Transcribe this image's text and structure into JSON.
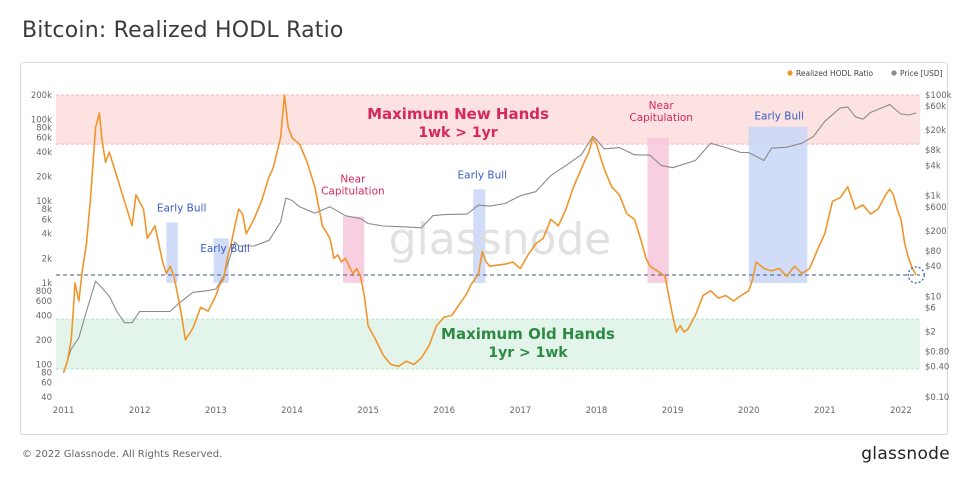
{
  "page": {
    "title": "Bitcoin: Realized HODL Ratio",
    "copyright": "© 2022 Glassnode. All Rights Reserved.",
    "brand": "glassnode",
    "watermark": "glassnode"
  },
  "colors": {
    "ratio": "#f0952b",
    "price": "#8a8a8a",
    "new_hands_zone": "#fde2e2",
    "old_hands_zone": "#e3f5ea",
    "near_cap_band": "#f7c6dc",
    "early_bull_band": "#c9d6f7",
    "new_hands_text": "#d6285f",
    "old_hands_text": "#2c8a43",
    "near_cap_text": "#d6285f",
    "early_bull_text": "#3a5ec4",
    "threshold_line": "#3d5a80"
  },
  "chart_data": {
    "type": "line",
    "x_axis": {
      "ticks": [
        "2011",
        "2012",
        "2013",
        "2014",
        "2015",
        "2016",
        "2017",
        "2018",
        "2019",
        "2020",
        "2021",
        "2022"
      ],
      "range": [
        2010.9,
        2022.25
      ]
    },
    "y_left": {
      "scale": "log",
      "range": [
        40,
        200000
      ],
      "ticks": [
        {
          "v": 200000,
          "l": "200k"
        },
        {
          "v": 100000,
          "l": "100k"
        },
        {
          "v": 80000,
          "l": "80k"
        },
        {
          "v": 60000,
          "l": "60k"
        },
        {
          "v": 40000,
          "l": "40k"
        },
        {
          "v": 20000,
          "l": "20k"
        },
        {
          "v": 10000,
          "l": "10k"
        },
        {
          "v": 8000,
          "l": "8k"
        },
        {
          "v": 6000,
          "l": "6k"
        },
        {
          "v": 4000,
          "l": "4k"
        },
        {
          "v": 2000,
          "l": "2k"
        },
        {
          "v": 1000,
          "l": "1k"
        },
        {
          "v": 800,
          "l": "800"
        },
        {
          "v": 600,
          "l": "600"
        },
        {
          "v": 400,
          "l": "400"
        },
        {
          "v": 200,
          "l": "200"
        },
        {
          "v": 100,
          "l": "100"
        },
        {
          "v": 80,
          "l": "80"
        },
        {
          "v": 60,
          "l": "60"
        },
        {
          "v": 40,
          "l": "40"
        }
      ]
    },
    "y_right": {
      "scale": "log",
      "range": [
        0.1,
        100000
      ],
      "ticks": [
        {
          "v": 100000,
          "l": "$100k"
        },
        {
          "v": 60000,
          "l": "$60k"
        },
        {
          "v": 20000,
          "l": "$20k"
        },
        {
          "v": 8000,
          "l": "$8k"
        },
        {
          "v": 4000,
          "l": "$4k"
        },
        {
          "v": 1000,
          "l": "$1k"
        },
        {
          "v": 600,
          "l": "$600"
        },
        {
          "v": 200,
          "l": "$200"
        },
        {
          "v": 80,
          "l": "$80"
        },
        {
          "v": 40,
          "l": "$40"
        },
        {
          "v": 10,
          "l": "$10"
        },
        {
          "v": 6,
          "l": "$6"
        },
        {
          "v": 2,
          "l": "$2"
        },
        {
          "v": 0.8,
          "l": "$0.80"
        },
        {
          "v": 0.4,
          "l": "$0.40"
        },
        {
          "v": 0.1,
          "l": "$0.10"
        }
      ]
    },
    "legend": {
      "placement": "top-right",
      "items": [
        {
          "name": "Realized HODL Ratio",
          "color": "#f0952b"
        },
        {
          "name": "Price [USD]",
          "color": "#8a8a8a"
        }
      ]
    },
    "zones": [
      {
        "name": "Maximum New Hands",
        "label_line1": "Maximum New Hands",
        "label_line2": "1wk > 1yr",
        "y_from": 50000,
        "y_to": 200000
      },
      {
        "name": "Maximum Old Hands",
        "label_line1": "Maximum Old Hands",
        "label_line2": "1yr > 1wk",
        "y_from": 88,
        "y_to": 360
      }
    ],
    "threshold": 1250,
    "bands": [
      {
        "label": "Early Bull",
        "type": "early_bull",
        "x_from": 2012.35,
        "x_to": 2012.5,
        "y_from": 1000,
        "y_to": 5500,
        "label_x": 2012.55,
        "label_y": 7500
      },
      {
        "label": "Early Bull",
        "type": "early_bull",
        "x_from": 2012.97,
        "x_to": 2013.17,
        "y_from": 1000,
        "y_to": 3500,
        "label_x": 2013.12,
        "label_y": 2400
      },
      {
        "label_line1": "Near",
        "label_line2": "Capitulation",
        "type": "near_cap",
        "x_from": 2014.67,
        "x_to": 2014.95,
        "y_from": 1000,
        "y_to": 6500,
        "label_x": 2014.8,
        "label_y": 17000
      },
      {
        "label": "Early Bull",
        "type": "early_bull",
        "x_from": 2016.38,
        "x_to": 2016.54,
        "y_from": 1000,
        "y_to": 14000,
        "label_x": 2016.5,
        "label_y": 19000
      },
      {
        "label_line1": "Near",
        "label_line2": "Capitulation",
        "type": "near_cap",
        "x_from": 2018.67,
        "x_to": 2018.95,
        "y_from": 1000,
        "y_to": 60000,
        "label_x": 2018.85,
        "label_y": 135000
      },
      {
        "label": "Early Bull",
        "type": "early_bull",
        "x_from": 2020.0,
        "x_to": 2020.77,
        "y_from": 1000,
        "y_to": 82000,
        "label_x": 2020.4,
        "label_y": 100000
      }
    ],
    "series": [
      {
        "name": "Realized HODL Ratio",
        "axis": "left",
        "points": [
          [
            2011.0,
            80
          ],
          [
            2011.05,
            110
          ],
          [
            2011.1,
            200
          ],
          [
            2011.13,
            500
          ],
          [
            2011.15,
            1000
          ],
          [
            2011.2,
            600
          ],
          [
            2011.25,
            1500
          ],
          [
            2011.3,
            3000
          ],
          [
            2011.35,
            10000
          ],
          [
            2011.42,
            80000
          ],
          [
            2011.47,
            120000
          ],
          [
            2011.5,
            60000
          ],
          [
            2011.55,
            30000
          ],
          [
            2011.6,
            40000
          ],
          [
            2011.7,
            20000
          ],
          [
            2011.8,
            10000
          ],
          [
            2011.9,
            5000
          ],
          [
            2011.95,
            12000
          ],
          [
            2012.05,
            8000
          ],
          [
            2012.1,
            3500
          ],
          [
            2012.2,
            5000
          ],
          [
            2012.3,
            1800
          ],
          [
            2012.35,
            1300
          ],
          [
            2012.4,
            1600
          ],
          [
            2012.45,
            1200
          ],
          [
            2012.5,
            700
          ],
          [
            2012.55,
            400
          ],
          [
            2012.6,
            200
          ],
          [
            2012.7,
            280
          ],
          [
            2012.8,
            500
          ],
          [
            2012.9,
            450
          ],
          [
            2013.0,
            700
          ],
          [
            2013.05,
            950
          ],
          [
            2013.1,
            1100
          ],
          [
            2013.15,
            2000
          ],
          [
            2013.2,
            3000
          ],
          [
            2013.25,
            5000
          ],
          [
            2013.3,
            8000
          ],
          [
            2013.35,
            7000
          ],
          [
            2013.4,
            4000
          ],
          [
            2013.5,
            6000
          ],
          [
            2013.6,
            10000
          ],
          [
            2013.7,
            20000
          ],
          [
            2013.75,
            25000
          ],
          [
            2013.85,
            60000
          ],
          [
            2013.9,
            200000
          ],
          [
            2013.95,
            80000
          ],
          [
            2014.0,
            60000
          ],
          [
            2014.1,
            50000
          ],
          [
            2014.2,
            30000
          ],
          [
            2014.3,
            15000
          ],
          [
            2014.4,
            5000
          ],
          [
            2014.5,
            3500
          ],
          [
            2014.55,
            2000
          ],
          [
            2014.6,
            2200
          ],
          [
            2014.65,
            1800
          ],
          [
            2014.7,
            2000
          ],
          [
            2014.75,
            1600
          ],
          [
            2014.8,
            1300
          ],
          [
            2014.85,
            1500
          ],
          [
            2014.9,
            1200
          ],
          [
            2014.95,
            700
          ],
          [
            2015.0,
            300
          ],
          [
            2015.1,
            200
          ],
          [
            2015.2,
            130
          ],
          [
            2015.3,
            100
          ],
          [
            2015.4,
            95
          ],
          [
            2015.5,
            110
          ],
          [
            2015.6,
            100
          ],
          [
            2015.7,
            120
          ],
          [
            2015.8,
            170
          ],
          [
            2015.9,
            300
          ],
          [
            2016.0,
            380
          ],
          [
            2016.1,
            400
          ],
          [
            2016.2,
            550
          ],
          [
            2016.3,
            750
          ],
          [
            2016.35,
            950
          ],
          [
            2016.4,
            1100
          ],
          [
            2016.45,
            1300
          ],
          [
            2016.5,
            2400
          ],
          [
            2016.55,
            1800
          ],
          [
            2016.6,
            1600
          ],
          [
            2016.8,
            1700
          ],
          [
            2016.9,
            1800
          ],
          [
            2017.0,
            1500
          ],
          [
            2017.1,
            2200
          ],
          [
            2017.2,
            3000
          ],
          [
            2017.3,
            3500
          ],
          [
            2017.4,
            6000
          ],
          [
            2017.5,
            5000
          ],
          [
            2017.6,
            8000
          ],
          [
            2017.7,
            15000
          ],
          [
            2017.8,
            25000
          ],
          [
            2017.9,
            40000
          ],
          [
            2017.95,
            60000
          ],
          [
            2018.0,
            50000
          ],
          [
            2018.1,
            25000
          ],
          [
            2018.2,
            15000
          ],
          [
            2018.3,
            12000
          ],
          [
            2018.4,
            7000
          ],
          [
            2018.5,
            6000
          ],
          [
            2018.6,
            3000
          ],
          [
            2018.65,
            2000
          ],
          [
            2018.7,
            1600
          ],
          [
            2018.8,
            1400
          ],
          [
            2018.9,
            1200
          ],
          [
            2019.0,
            400
          ],
          [
            2019.05,
            250
          ],
          [
            2019.1,
            300
          ],
          [
            2019.15,
            250
          ],
          [
            2019.2,
            270
          ],
          [
            2019.3,
            400
          ],
          [
            2019.4,
            700
          ],
          [
            2019.5,
            800
          ],
          [
            2019.6,
            650
          ],
          [
            2019.7,
            700
          ],
          [
            2019.8,
            600
          ],
          [
            2019.9,
            700
          ],
          [
            2020.0,
            800
          ],
          [
            2020.05,
            1100
          ],
          [
            2020.1,
            1800
          ],
          [
            2020.2,
            1500
          ],
          [
            2020.3,
            1400
          ],
          [
            2020.4,
            1500
          ],
          [
            2020.5,
            1200
          ],
          [
            2020.6,
            1600
          ],
          [
            2020.7,
            1300
          ],
          [
            2020.8,
            1500
          ],
          [
            2020.9,
            2500
          ],
          [
            2021.0,
            4000
          ],
          [
            2021.1,
            10000
          ],
          [
            2021.2,
            11000
          ],
          [
            2021.3,
            15000
          ],
          [
            2021.4,
            8000
          ],
          [
            2021.5,
            9000
          ],
          [
            2021.6,
            7000
          ],
          [
            2021.7,
            8000
          ],
          [
            2021.8,
            12000
          ],
          [
            2021.85,
            14000
          ],
          [
            2021.9,
            12000
          ],
          [
            2021.95,
            8000
          ],
          [
            2022.0,
            6000
          ],
          [
            2022.05,
            3000
          ],
          [
            2022.1,
            2000
          ],
          [
            2022.15,
            1500
          ],
          [
            2022.2,
            1250
          ]
        ]
      },
      {
        "name": "Price [USD]",
        "axis": "right",
        "points": [
          [
            2011.0,
            0.3
          ],
          [
            2011.1,
            0.9
          ],
          [
            2011.2,
            1.5
          ],
          [
            2011.3,
            5
          ],
          [
            2011.42,
            20
          ],
          [
            2011.5,
            15
          ],
          [
            2011.6,
            10
          ],
          [
            2011.7,
            5
          ],
          [
            2011.8,
            3
          ],
          [
            2011.9,
            3
          ],
          [
            2012.0,
            5
          ],
          [
            2012.2,
            5
          ],
          [
            2012.4,
            5
          ],
          [
            2012.5,
            7
          ],
          [
            2012.7,
            12
          ],
          [
            2012.9,
            13
          ],
          [
            2013.0,
            14
          ],
          [
            2013.1,
            25
          ],
          [
            2013.25,
            120
          ],
          [
            2013.3,
            100
          ],
          [
            2013.5,
            100
          ],
          [
            2013.7,
            130
          ],
          [
            2013.85,
            300
          ],
          [
            2013.92,
            900
          ],
          [
            2014.0,
            800
          ],
          [
            2014.1,
            600
          ],
          [
            2014.3,
            450
          ],
          [
            2014.5,
            600
          ],
          [
            2014.7,
            400
          ],
          [
            2014.9,
            350
          ],
          [
            2015.0,
            280
          ],
          [
            2015.2,
            250
          ],
          [
            2015.5,
            240
          ],
          [
            2015.7,
            230
          ],
          [
            2015.85,
            400
          ],
          [
            2016.0,
            420
          ],
          [
            2016.3,
            430
          ],
          [
            2016.45,
            650
          ],
          [
            2016.6,
            620
          ],
          [
            2016.8,
            700
          ],
          [
            2017.0,
            1000
          ],
          [
            2017.2,
            1200
          ],
          [
            2017.4,
            2500
          ],
          [
            2017.6,
            4000
          ],
          [
            2017.8,
            6500
          ],
          [
            2017.95,
            15000
          ],
          [
            2018.0,
            13000
          ],
          [
            2018.1,
            8500
          ],
          [
            2018.3,
            9000
          ],
          [
            2018.5,
            6500
          ],
          [
            2018.7,
            6400
          ],
          [
            2018.85,
            4000
          ],
          [
            2019.0,
            3600
          ],
          [
            2019.3,
            5000
          ],
          [
            2019.5,
            11000
          ],
          [
            2019.7,
            9000
          ],
          [
            2019.9,
            7200
          ],
          [
            2020.0,
            7200
          ],
          [
            2020.2,
            5000
          ],
          [
            2020.3,
            8800
          ],
          [
            2020.5,
            9200
          ],
          [
            2020.7,
            11000
          ],
          [
            2020.85,
            15000
          ],
          [
            2021.0,
            30000
          ],
          [
            2021.2,
            55000
          ],
          [
            2021.3,
            58000
          ],
          [
            2021.4,
            37000
          ],
          [
            2021.5,
            33000
          ],
          [
            2021.6,
            45000
          ],
          [
            2021.8,
            60000
          ],
          [
            2021.85,
            65000
          ],
          [
            2021.95,
            48000
          ],
          [
            2022.0,
            42000
          ],
          [
            2022.1,
            40000
          ],
          [
            2022.2,
            44000
          ]
        ]
      }
    ]
  }
}
